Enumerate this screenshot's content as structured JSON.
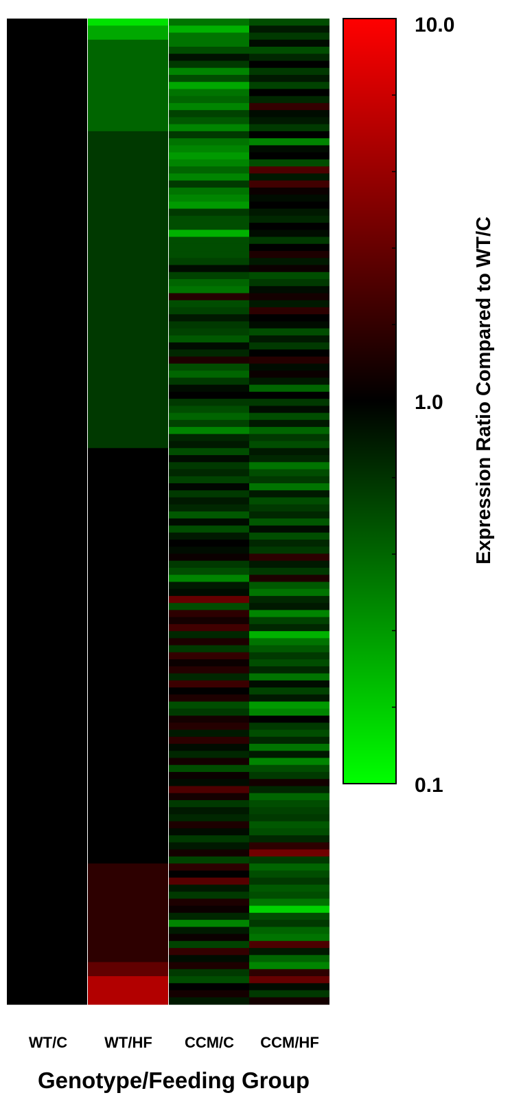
{
  "chart_data": {
    "type": "heatmap",
    "xlabel": "Genotype/Feeding Group",
    "columns": [
      "WT/C",
      "WT/HF",
      "CCM/C",
      "CCM/HF"
    ],
    "colorbar": {
      "label": "Expression Ratio Compared to WT/C",
      "scale": "log",
      "range": [
        0.1,
        10.0
      ],
      "tick_labels": [
        "10.0",
        "1.0",
        "0.1"
      ],
      "colors": {
        "low": "#00ff00",
        "mid": "#000000",
        "high": "#ff0000"
      }
    },
    "rows_total": 140,
    "cells": [
      {
        "column": "WT/C",
        "blocks": [
          {
            "rows": [
              0,
              140
            ],
            "ratio": 1.0
          }
        ]
      },
      {
        "column": "WT/HF",
        "blocks": [
          {
            "rows": [
              0,
              1
            ],
            "ratio": 0.13
          },
          {
            "rows": [
              1,
              3
            ],
            "ratio": 0.22
          },
          {
            "rows": [
              3,
              16
            ],
            "ratio": 0.4
          },
          {
            "rows": [
              16,
              61
            ],
            "ratio": 0.6
          },
          {
            "rows": [
              61,
              120
            ],
            "ratio": 1.0
          },
          {
            "rows": [
              120,
              134
            ],
            "ratio": 1.5
          },
          {
            "rows": [
              134,
              136
            ],
            "ratio": 2.4
          },
          {
            "rows": [
              136,
              140
            ],
            "ratio": 5.0
          }
        ]
      },
      {
        "column": "CCM/C",
        "ratios": [
          0.35,
          0.2,
          0.35,
          0.35,
          0.5,
          0.85,
          0.6,
          0.3,
          0.5,
          0.22,
          0.35,
          0.4,
          0.3,
          0.55,
          0.45,
          0.3,
          0.6,
          0.35,
          0.3,
          0.25,
          0.3,
          0.4,
          0.3,
          0.6,
          0.35,
          0.3,
          0.25,
          0.6,
          0.5,
          0.5,
          0.2,
          0.5,
          0.5,
          0.5,
          0.55,
          0.9,
          0.55,
          0.4,
          0.35,
          1.4,
          0.5,
          0.55,
          0.8,
          0.6,
          0.55,
          0.45,
          0.9,
          0.7,
          1.3,
          0.5,
          0.4,
          0.6,
          0.9,
          1.0,
          0.6,
          0.5,
          0.4,
          0.55,
          0.3,
          0.7,
          0.8,
          0.5,
          0.9,
          0.6,
          0.7,
          0.55,
          0.95,
          0.6,
          0.8,
          0.7,
          0.45,
          0.9,
          0.5,
          0.8,
          1.0,
          0.9,
          1.1,
          0.6,
          0.5,
          0.3,
          0.8,
          0.9,
          2.5,
          0.5,
          1.5,
          1.2,
          1.8,
          0.7,
          1.3,
          0.6,
          1.6,
          1.1,
          1.4,
          0.7,
          1.7,
          1.0,
          1.3,
          0.5,
          0.6,
          1.2,
          1.4,
          0.8,
          1.5,
          0.9,
          0.7,
          1.2,
          0.5,
          1.1,
          0.9,
          2.0,
          1.2,
          0.6,
          0.8,
          0.7,
          1.3,
          0.9,
          0.6,
          0.8,
          1.2,
          0.55,
          1.5,
          1.0,
          2.2,
          0.8,
          0.6,
          1.3,
          1.1,
          0.7,
          0.3,
          0.8,
          1.1,
          0.55,
          1.6,
          0.9,
          1.3,
          0.6,
          0.5,
          1.0,
          1.2,
          0.8
        ]
      },
      {
        "column": "CCM/HF",
        "ratios": [
          0.5,
          0.8,
          0.6,
          0.9,
          0.5,
          0.7,
          1.0,
          0.6,
          0.8,
          0.55,
          1.0,
          0.7,
          1.6,
          0.9,
          0.8,
          0.6,
          1.0,
          0.3,
          0.9,
          1.0,
          0.5,
          2.0,
          0.8,
          1.8,
          1.1,
          0.9,
          1.0,
          0.8,
          0.7,
          1.0,
          0.9,
          0.6,
          1.0,
          1.3,
          0.8,
          1.1,
          0.5,
          0.6,
          0.9,
          1.2,
          0.8,
          1.5,
          1.0,
          0.9,
          0.5,
          0.8,
          0.6,
          1.0,
          1.4,
          0.9,
          1.1,
          0.8,
          0.4,
          1.0,
          0.6,
          0.9,
          0.5,
          0.8,
          0.4,
          0.6,
          0.5,
          0.8,
          0.7,
          0.35,
          0.5,
          0.6,
          0.35,
          0.8,
          0.5,
          0.6,
          0.7,
          0.45,
          0.9,
          0.5,
          0.7,
          0.6,
          1.5,
          0.8,
          0.6,
          1.3,
          0.45,
          0.35,
          0.7,
          0.8,
          0.3,
          0.55,
          0.7,
          0.2,
          0.35,
          0.45,
          0.6,
          0.5,
          0.7,
          0.35,
          0.9,
          0.55,
          0.8,
          0.25,
          0.3,
          1.0,
          0.6,
          0.5,
          0.7,
          0.35,
          0.8,
          0.3,
          0.5,
          0.6,
          1.2,
          0.7,
          0.4,
          0.5,
          0.55,
          0.6,
          0.45,
          0.5,
          0.7,
          1.5,
          2.8,
          0.6,
          0.4,
          0.5,
          0.6,
          0.45,
          0.5,
          0.35,
          0.15,
          0.5,
          0.6,
          0.4,
          0.35,
          2.0,
          0.8,
          0.4,
          0.3,
          1.5,
          2.5,
          0.9,
          0.6,
          1.2
        ]
      }
    ]
  }
}
